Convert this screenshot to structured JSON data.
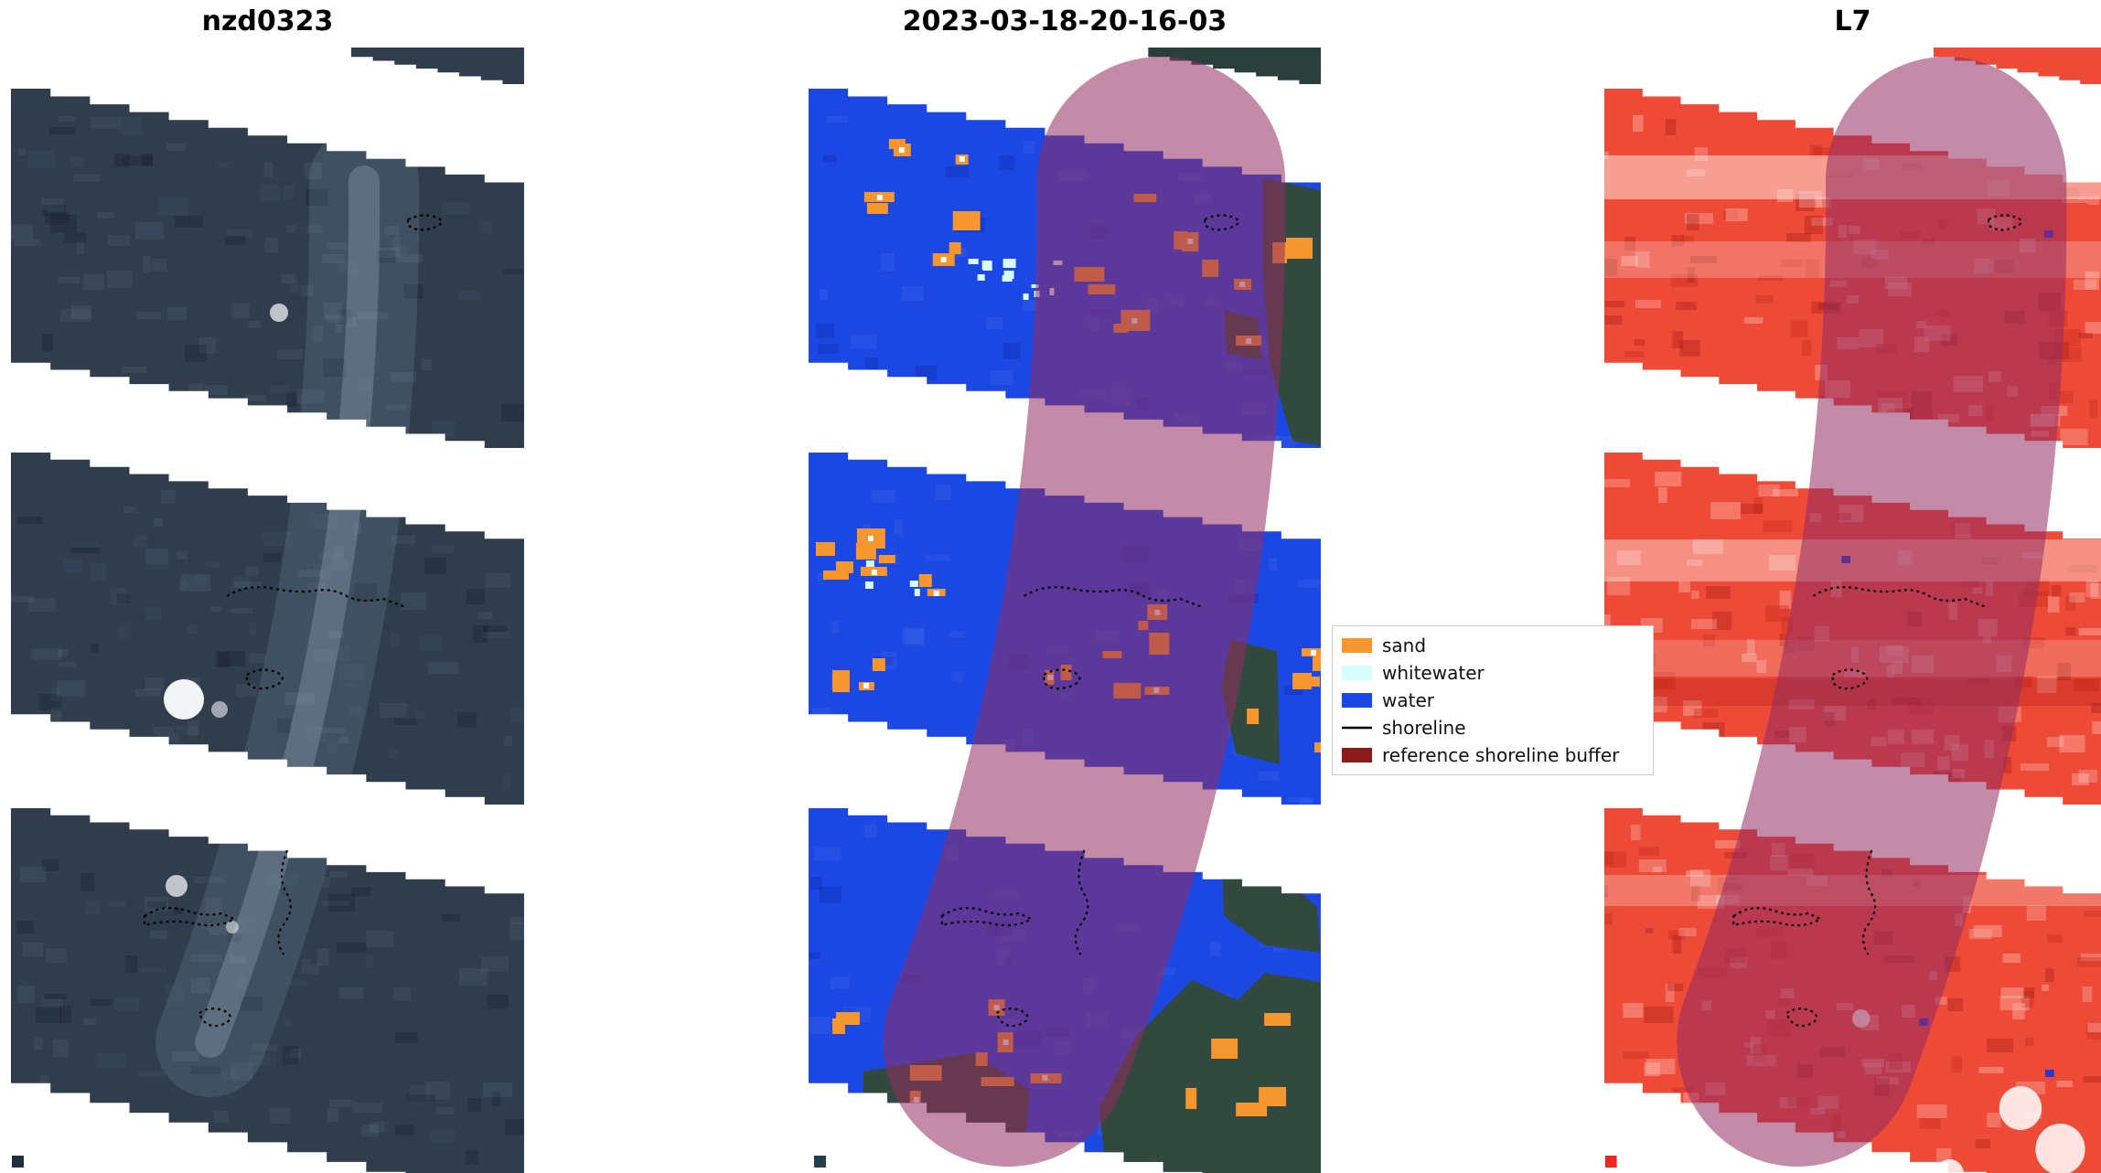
{
  "figure": {
    "panels": [
      {
        "title": "nzd0323"
      },
      {
        "title": "2023-03-18-20-16-03"
      },
      {
        "title": "L7"
      }
    ]
  },
  "legend": {
    "items": [
      {
        "label": "sand",
        "color": "#f5962e",
        "shape": "patch"
      },
      {
        "label": "whitewater",
        "color": "#d8feff",
        "shape": "patch"
      },
      {
        "label": "water",
        "color": "#1b48e3",
        "shape": "patch"
      },
      {
        "label": "shoreline",
        "color": "#000000",
        "shape": "line"
      },
      {
        "label": "reference shoreline buffer",
        "color": "#8b1a1a",
        "shape": "patch"
      }
    ]
  },
  "colors": {
    "background": "#ffffff",
    "sand": "#f5962e",
    "whitewater": "#d8feff",
    "water": "#1b48e3",
    "shoreline": "#000000",
    "reference_buffer_legend": "#8b1a1a",
    "buffer_overlay": "rgba(145,44,97,0.55)",
    "rgb_base": "#2f3d4d",
    "land": "#31493e",
    "ir_base": "#ee4a38"
  },
  "chart_data": [
    {
      "type": "heatmap",
      "title": "nzd0323",
      "description": "True-color (RGB) satellite image of a coastal scene; three diagonal image strips separated by white no-data gaps; dotted black detected shoreline contours; bright surf/whitewater spots along the coast."
    },
    {
      "type": "heatmap",
      "title": "2023-03-18-20-16-03",
      "description": "Pixel classification map of the same scene with a semi-transparent reference shoreline buffer band running top to bottom (appears purple over water, pink over the white gaps).",
      "classes": [
        {
          "name": "sand",
          "color": "#f5962e"
        },
        {
          "name": "whitewater",
          "color": "#d8feff"
        },
        {
          "name": "water",
          "color": "#1b48e3"
        },
        {
          "name": "shoreline",
          "color": "#000000"
        },
        {
          "name": "reference shoreline buffer",
          "color": "#8b1a1a"
        }
      ],
      "legend_position": "center right"
    },
    {
      "type": "heatmap",
      "title": "L7",
      "description": "False-color (infrared, Landsat 7) rendering of the same scene in reds with the same semi-transparent reference shoreline buffer band and dotted shoreline contours."
    }
  ]
}
